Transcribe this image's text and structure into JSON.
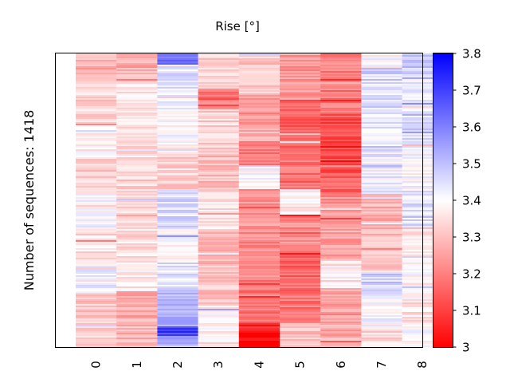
{
  "chart_data": {
    "type": "heatmap",
    "title": "Rise [°]",
    "ylabel": "Number of sequences: 1418",
    "xlabel": "",
    "columns": [
      "0",
      "1",
      "2",
      "3",
      "4",
      "5",
      "6",
      "7",
      "8"
    ],
    "colormap": "bwr_r",
    "value_range": [
      3.0,
      3.8
    ],
    "colorbar_ticks": [
      "3",
      "3.1",
      "3.2",
      "3.3",
      "3.4",
      "3.5",
      "3.6",
      "3.7",
      "3.8"
    ],
    "column_blocks": [
      {
        "column": "0",
        "blocks": [
          [
            0.0,
            0.1,
            3.28
          ],
          [
            0.1,
            0.24,
            3.33
          ],
          [
            0.24,
            0.36,
            3.37
          ],
          [
            0.36,
            0.48,
            3.32
          ],
          [
            0.48,
            0.6,
            3.4
          ],
          [
            0.6,
            0.72,
            3.36
          ],
          [
            0.72,
            0.81,
            3.42
          ],
          [
            0.81,
            0.9,
            3.31
          ],
          [
            0.9,
            1.0,
            3.33
          ]
        ]
      },
      {
        "column": "1",
        "blocks": [
          [
            0.0,
            0.1,
            3.29
          ],
          [
            0.1,
            0.24,
            3.36
          ],
          [
            0.24,
            0.36,
            3.35
          ],
          [
            0.36,
            0.48,
            3.33
          ],
          [
            0.48,
            0.6,
            3.34
          ],
          [
            0.6,
            0.72,
            3.35
          ],
          [
            0.72,
            0.81,
            3.37
          ],
          [
            0.81,
            0.9,
            3.27
          ],
          [
            0.9,
            1.0,
            3.29
          ]
        ]
      },
      {
        "column": "2",
        "blocks": [
          [
            0.0,
            0.04,
            3.62
          ],
          [
            0.04,
            0.18,
            3.44
          ],
          [
            0.18,
            0.32,
            3.4
          ],
          [
            0.32,
            0.46,
            3.33
          ],
          [
            0.46,
            0.6,
            3.45
          ],
          [
            0.6,
            0.7,
            3.39
          ],
          [
            0.7,
            0.8,
            3.44
          ],
          [
            0.8,
            0.85,
            3.49
          ],
          [
            0.85,
            0.93,
            3.51
          ],
          [
            0.93,
            0.96,
            3.7
          ],
          [
            0.96,
            1.0,
            3.52
          ]
        ]
      },
      {
        "column": "3",
        "blocks": [
          [
            0.0,
            0.12,
            3.32
          ],
          [
            0.12,
            0.19,
            3.2
          ],
          [
            0.19,
            0.32,
            3.33
          ],
          [
            0.32,
            0.46,
            3.3
          ],
          [
            0.46,
            0.6,
            3.35
          ],
          [
            0.6,
            0.72,
            3.28
          ],
          [
            0.72,
            0.86,
            3.31
          ],
          [
            0.86,
            0.94,
            3.38
          ],
          [
            0.94,
            1.0,
            3.36
          ]
        ]
      },
      {
        "column": "4",
        "blocks": [
          [
            0.0,
            0.14,
            3.31
          ],
          [
            0.14,
            0.24,
            3.23
          ],
          [
            0.24,
            0.3,
            3.28
          ],
          [
            0.3,
            0.38,
            3.19
          ],
          [
            0.38,
            0.46,
            3.4
          ],
          [
            0.46,
            0.6,
            3.23
          ],
          [
            0.6,
            0.76,
            3.21
          ],
          [
            0.76,
            0.92,
            3.18
          ],
          [
            0.92,
            1.0,
            3.02
          ]
        ]
      },
      {
        "column": "5",
        "blocks": [
          [
            0.0,
            0.16,
            3.24
          ],
          [
            0.16,
            0.3,
            3.14
          ],
          [
            0.3,
            0.36,
            3.17
          ],
          [
            0.36,
            0.46,
            3.18
          ],
          [
            0.46,
            0.55,
            3.38
          ],
          [
            0.55,
            0.66,
            3.22
          ],
          [
            0.66,
            0.8,
            3.16
          ],
          [
            0.8,
            0.92,
            3.18
          ],
          [
            0.92,
            1.0,
            3.3
          ]
        ]
      },
      {
        "column": "6",
        "blocks": [
          [
            0.0,
            0.2,
            3.19
          ],
          [
            0.2,
            0.4,
            3.12
          ],
          [
            0.4,
            0.48,
            3.15
          ],
          [
            0.48,
            0.55,
            3.23
          ],
          [
            0.55,
            0.7,
            3.26
          ],
          [
            0.7,
            0.8,
            3.37
          ],
          [
            0.8,
            0.93,
            3.25
          ],
          [
            0.93,
            1.0,
            3.27
          ]
        ]
      },
      {
        "column": "7",
        "blocks": [
          [
            0.0,
            0.05,
            3.4
          ],
          [
            0.05,
            0.2,
            3.46
          ],
          [
            0.2,
            0.35,
            3.43
          ],
          [
            0.35,
            0.48,
            3.42
          ],
          [
            0.48,
            0.62,
            3.28
          ],
          [
            0.62,
            0.75,
            3.32
          ],
          [
            0.75,
            0.82,
            3.47
          ],
          [
            0.82,
            0.93,
            3.4
          ],
          [
            0.93,
            1.0,
            3.34
          ]
        ]
      },
      {
        "column": "8",
        "blocks": [
          [
            0.0,
            0.08,
            3.48
          ],
          [
            0.08,
            0.2,
            3.43
          ],
          [
            0.2,
            0.32,
            3.46
          ],
          [
            0.32,
            0.46,
            3.4
          ],
          [
            0.46,
            0.6,
            3.44
          ],
          [
            0.6,
            0.72,
            3.37
          ],
          [
            0.72,
            0.84,
            3.38
          ],
          [
            0.84,
            0.93,
            3.35
          ],
          [
            0.93,
            1.0,
            3.4
          ]
        ]
      }
    ]
  }
}
